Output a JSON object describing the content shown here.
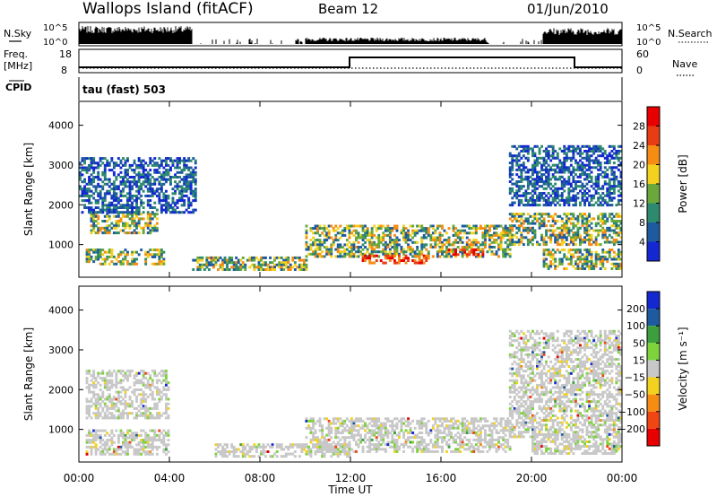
{
  "header": {
    "site": "Wallops Island (fitACF)",
    "beam": "Beam 12",
    "date": "01/Jun/2010"
  },
  "panels": {
    "nsky_label": "N.Sky",
    "nsky_ticks": [
      "10^5",
      "10^0"
    ],
    "nsearch_label": "N.Search",
    "nsearch_ticks": [
      "10^5",
      "10^0"
    ],
    "freq_label": "Freq.",
    "freq_unit": "[MHz]",
    "freq_ticks": [
      "18",
      "8"
    ],
    "nave_label": "Nave",
    "nave_ticks": [
      "60",
      "0"
    ],
    "cpid_label": "CPID",
    "cpid_value": "tau (fast) 503"
  },
  "colors": {
    "power": [
      "#1428d2",
      "#1e5aa0",
      "#2e8a6e",
      "#6aa83c",
      "#f2d21e",
      "#f58c14",
      "#e83c14",
      "#e80000"
    ],
    "velocity": [
      "#1428d2",
      "#1e5aa0",
      "#3c9e3c",
      "#7ed23c",
      "#c8c8c8",
      "#f2d21e",
      "#f58c14",
      "#f04614",
      "#e80000"
    ]
  },
  "chart_data": [
    {
      "type": "heatmap",
      "name": "power",
      "xlabel": "Time UT",
      "ylabel": "Slant Range [km]",
      "x_ticks": [
        "00:00",
        "04:00",
        "08:00",
        "12:00",
        "16:00",
        "20:00",
        "00:00"
      ],
      "xlim_hours": [
        0,
        24
      ],
      "y_ticks": [
        1000,
        2000,
        3000,
        4000
      ],
      "ylim": [
        180,
        4600
      ],
      "colorbar_label": "Power [dB]",
      "colorbar_ticks": [
        4,
        8,
        12,
        16,
        20,
        24,
        28
      ],
      "colorbar_range": [
        0,
        32
      ],
      "regions": [
        {
          "t": [
            0.5,
            3.5
          ],
          "r": [
            1300,
            1800
          ],
          "level": "mid"
        },
        {
          "t": [
            0.3,
            3.8
          ],
          "r": [
            500,
            900
          ],
          "level": "mid"
        },
        {
          "t": [
            0.0,
            5.2
          ],
          "r": [
            1800,
            3200
          ],
          "level": "low"
        },
        {
          "t": [
            5.0,
            10.0
          ],
          "r": [
            400,
            700
          ],
          "level": "mid"
        },
        {
          "t": [
            10.0,
            19.0
          ],
          "r": [
            700,
            1500
          ],
          "level": "mid"
        },
        {
          "t": [
            12.5,
            15.5
          ],
          "r": [
            550,
            750
          ],
          "level": "high"
        },
        {
          "t": [
            16.2,
            17.8
          ],
          "r": [
            750,
            900
          ],
          "level": "high"
        },
        {
          "t": [
            19.0,
            24.0
          ],
          "r": [
            1000,
            1800
          ],
          "level": "mid"
        },
        {
          "t": [
            19.0,
            24.0
          ],
          "r": [
            2000,
            3500
          ],
          "level": "low"
        },
        {
          "t": [
            20.5,
            24.0
          ],
          "r": [
            400,
            900
          ],
          "level": "mid"
        }
      ]
    },
    {
      "type": "heatmap",
      "name": "velocity",
      "xlabel": "Time UT",
      "ylabel": "Slant Range [km]",
      "x_ticks": [
        "00:00",
        "04:00",
        "08:00",
        "12:00",
        "16:00",
        "20:00",
        "00:00"
      ],
      "xlim_hours": [
        0,
        24
      ],
      "y_ticks": [
        1000,
        2000,
        3000,
        4000
      ],
      "ylim": [
        180,
        4600
      ],
      "colorbar_label": "Velocity [m s⁻¹]",
      "colorbar_ticks": [
        "200",
        "100",
        "50",
        "15",
        "−15",
        "−50",
        "−100",
        "−200"
      ],
      "regions": [
        {
          "t": [
            0.3,
            4.0
          ],
          "r": [
            1300,
            2500
          ],
          "level": "ground"
        },
        {
          "t": [
            0.3,
            4.0
          ],
          "r": [
            400,
            1000
          ],
          "level": "ground"
        },
        {
          "t": [
            6.0,
            12.0
          ],
          "r": [
            350,
            650
          ],
          "level": "ground"
        },
        {
          "t": [
            10.0,
            19.0
          ],
          "r": [
            450,
            1300
          ],
          "level": "ground"
        },
        {
          "t": [
            19.0,
            24.0
          ],
          "r": [
            800,
            3500
          ],
          "level": "ground"
        },
        {
          "t": [
            20.0,
            24.0
          ],
          "r": [
            400,
            900
          ],
          "level": "ground"
        }
      ]
    }
  ]
}
